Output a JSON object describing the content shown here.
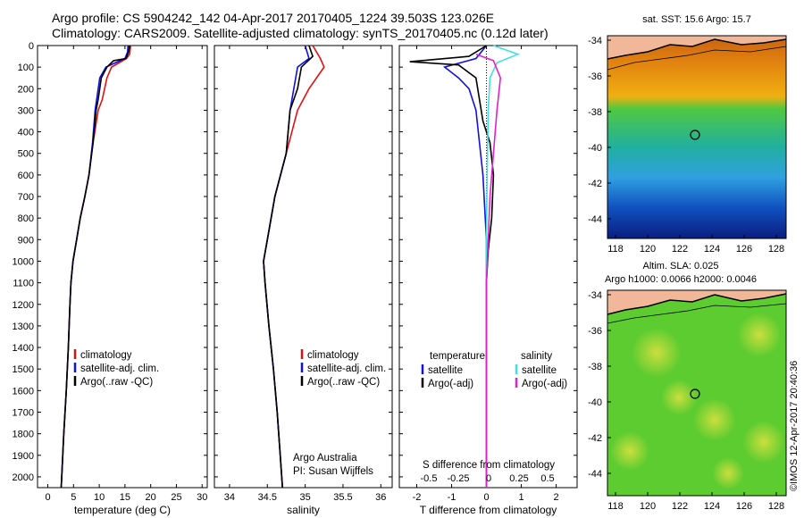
{
  "header": {
    "line1": "Argo profile: CS 5904242_142 04-Apr-2017 20170405_1224 39.503S 123.026E",
    "line2": "Climatology: CARS2009. Satellite-adjusted climatology: synTS_20170405.nc (0.12d later)"
  },
  "colors": {
    "climatology": "#e01010",
    "satellite": "#1010e0",
    "argo": "#000000",
    "sat_salinity": "#40e0e8",
    "argo_salinity": "#e020d0"
  },
  "chart_data": [
    {
      "type": "line",
      "id": "temperature",
      "xlabel": "temperature (deg C)",
      "ylabel": "",
      "xlim": [
        -2,
        31
      ],
      "ylim": [
        2050,
        0
      ],
      "x_ticks": [
        0,
        5,
        10,
        15,
        20,
        25,
        30
      ],
      "y_ticks": [
        0,
        100,
        200,
        300,
        400,
        500,
        600,
        700,
        800,
        900,
        1000,
        1100,
        1200,
        1300,
        1400,
        1500,
        1600,
        1700,
        1800,
        1900,
        2000
      ],
      "legend": [
        "climatology",
        "satellite-adj. clim.",
        "Argo(..raw -QC)"
      ],
      "legend_position": "lower-center",
      "series": [
        {
          "name": "climatology",
          "color": "#e01010",
          "points": [
            [
              16.1,
              0
            ],
            [
              15.9,
              40
            ],
            [
              15.3,
              60
            ],
            [
              12.4,
              100
            ],
            [
              11.5,
              150
            ],
            [
              10.6,
              250
            ],
            [
              9.8,
              300
            ],
            [
              8.8,
              450
            ],
            [
              8.0,
              600
            ],
            [
              7.2,
              700
            ],
            [
              6.3,
              800
            ],
            [
              5.6,
              900
            ],
            [
              4.9,
              1000
            ],
            [
              4.5,
              1100
            ],
            [
              4.3,
              1200
            ],
            [
              4.0,
              1400
            ],
            [
              3.6,
              1600
            ],
            [
              3.1,
              1800
            ],
            [
              2.7,
              2000
            ],
            [
              2.6,
              2050
            ]
          ]
        },
        {
          "name": "satellite-adj. clim.",
          "color": "#1010e0",
          "points": [
            [
              15.6,
              0
            ],
            [
              15.5,
              30
            ],
            [
              15.0,
              60
            ],
            [
              11.3,
              100
            ],
            [
              10.1,
              150
            ],
            [
              9.5,
              250
            ],
            [
              9.2,
              300
            ],
            [
              8.7,
              450
            ],
            [
              8.0,
              600
            ],
            [
              7.2,
              700
            ],
            [
              6.3,
              800
            ],
            [
              5.6,
              900
            ],
            [
              4.9,
              1000
            ],
            [
              4.5,
              1100
            ],
            [
              4.3,
              1200
            ],
            [
              4.0,
              1400
            ],
            [
              3.6,
              1600
            ],
            [
              3.1,
              1800
            ],
            [
              2.7,
              2000
            ],
            [
              2.6,
              2050
            ]
          ]
        },
        {
          "name": "Argo(..raw -QC)",
          "color": "#000000",
          "points": [
            [
              15.9,
              0
            ],
            [
              15.7,
              30
            ],
            [
              15.2,
              60
            ],
            [
              12.8,
              70
            ],
            [
              11.5,
              100
            ],
            [
              10.4,
              150
            ],
            [
              9.8,
              250
            ],
            [
              9.4,
              300
            ],
            [
              8.8,
              450
            ],
            [
              8.0,
              600
            ],
            [
              7.2,
              700
            ],
            [
              6.3,
              800
            ],
            [
              5.6,
              900
            ],
            [
              4.9,
              1000
            ],
            [
              4.5,
              1100
            ],
            [
              4.3,
              1200
            ],
            [
              4.0,
              1400
            ],
            [
              3.6,
              1600
            ],
            [
              3.1,
              1800
            ],
            [
              2.7,
              2000
            ],
            [
              2.6,
              2050
            ]
          ]
        }
      ]
    },
    {
      "type": "line",
      "id": "salinity",
      "xlabel": "salinity",
      "ylabel": "",
      "xlim": [
        33.8,
        36.15
      ],
      "ylim": [
        2050,
        0
      ],
      "x_ticks": [
        34,
        34.5,
        35,
        35.5,
        36
      ],
      "legend": [
        "climatology",
        "satellite-adj. clim.",
        "Argo(..raw -QC)"
      ],
      "legend_position": "lower-right",
      "annotation": [
        "Argo Australia",
        "PI: Susan Wijffels"
      ],
      "series": [
        {
          "name": "climatology",
          "color": "#e01010",
          "points": [
            [
              35.1,
              0
            ],
            [
              35.2,
              60
            ],
            [
              35.25,
              100
            ],
            [
              35.05,
              200
            ],
            [
              34.9,
              300
            ],
            [
              34.75,
              500
            ],
            [
              34.6,
              700
            ],
            [
              34.5,
              900
            ],
            [
              34.45,
              1000
            ],
            [
              34.47,
              1100
            ],
            [
              34.52,
              1300
            ],
            [
              34.58,
              1500
            ],
            [
              34.63,
              1700
            ],
            [
              34.67,
              1900
            ],
            [
              34.7,
              2050
            ]
          ]
        },
        {
          "name": "satellite-adj. clim.",
          "color": "#1010e0",
          "points": [
            [
              35.0,
              0
            ],
            [
              35.05,
              60
            ],
            [
              34.9,
              100
            ],
            [
              34.85,
              200
            ],
            [
              34.8,
              300
            ],
            [
              34.75,
              500
            ],
            [
              34.6,
              700
            ],
            [
              34.5,
              900
            ],
            [
              34.45,
              1000
            ],
            [
              34.47,
              1100
            ],
            [
              34.52,
              1300
            ],
            [
              34.58,
              1500
            ],
            [
              34.63,
              1700
            ],
            [
              34.67,
              1900
            ],
            [
              34.7,
              2050
            ]
          ]
        },
        {
          "name": "Argo(..raw -QC)",
          "color": "#000000",
          "points": [
            [
              35.05,
              0
            ],
            [
              35.1,
              50
            ],
            [
              34.95,
              100
            ],
            [
              34.9,
              200
            ],
            [
              34.8,
              300
            ],
            [
              34.75,
              500
            ],
            [
              34.6,
              700
            ],
            [
              34.5,
              900
            ],
            [
              34.45,
              1000
            ],
            [
              34.47,
              1100
            ],
            [
              34.52,
              1300
            ],
            [
              34.58,
              1500
            ],
            [
              34.63,
              1700
            ],
            [
              34.67,
              1900
            ],
            [
              34.7,
              2050
            ]
          ]
        }
      ]
    },
    {
      "type": "line",
      "id": "differences",
      "xlabel": "T difference from climatology",
      "xlabel_top": "S difference from climatology",
      "ylabel": "",
      "xlim": [
        -2.5,
        2.6
      ],
      "ylim": [
        2050,
        0
      ],
      "x_ticks": [
        -2,
        -1,
        0,
        1,
        2
      ],
      "s_ticks": [
        "-0.5",
        "-0.25",
        "0",
        "0.25",
        "0.5"
      ],
      "legend_headers": [
        "temperature",
        "salinity"
      ],
      "legend": [
        "satellite",
        "Argo(-adj)",
        "satellite",
        "Argo(-adj)"
      ],
      "legend_position": "lower-center",
      "series": [
        {
          "name": "temperature satellite",
          "color": "#1010e0",
          "points": [
            [
              0,
              0
            ],
            [
              -0.3,
              60
            ],
            [
              -1.2,
              100
            ],
            [
              -0.8,
              150
            ],
            [
              -0.5,
              200
            ],
            [
              -0.3,
              300
            ],
            [
              -0.2,
              450
            ],
            [
              -0.1,
              600
            ],
            [
              0,
              900
            ],
            [
              0,
              2050
            ]
          ]
        },
        {
          "name": "temperature Argo(-adj)",
          "color": "#000000",
          "points": [
            [
              0,
              0
            ],
            [
              -0.5,
              50
            ],
            [
              -2.2,
              75
            ],
            [
              -0.8,
              90
            ],
            [
              -0.3,
              150
            ],
            [
              -0.2,
              250
            ],
            [
              -0.1,
              350
            ],
            [
              0.1,
              450
            ],
            [
              0.2,
              600
            ],
            [
              0.15,
              800
            ],
            [
              0.05,
              950
            ],
            [
              0,
              1100
            ],
            [
              0,
              2050
            ]
          ]
        },
        {
          "name": "salinity satellite",
          "color": "#40e0e8",
          "points": [
            [
              0.2,
              0
            ],
            [
              0.9,
              40
            ],
            [
              0.3,
              80
            ],
            [
              0.1,
              150
            ],
            [
              0.05,
              300
            ],
            [
              0.02,
              600
            ],
            [
              0,
              900
            ],
            [
              0,
              2050
            ]
          ]
        },
        {
          "name": "salinity Argo(-adj)",
          "color": "#e020d0",
          "points": [
            [
              -0.3,
              40
            ],
            [
              0.2,
              70
            ],
            [
              0.4,
              150
            ],
            [
              0.3,
              300
            ],
            [
              0.2,
              500
            ],
            [
              0.1,
              700
            ],
            [
              0.05,
              900
            ],
            [
              0,
              1100
            ],
            [
              0,
              2050
            ]
          ]
        }
      ]
    }
  ],
  "maps": {
    "sst": {
      "title": "sat. SST: 15.6 Argo: 15.7",
      "x_ticks": [
        "118",
        "120",
        "122",
        "124",
        "126",
        "128"
      ],
      "y_ticks": [
        "-34",
        "-36",
        "-38",
        "-40",
        "-42",
        "-44"
      ]
    },
    "sla": {
      "title_line1": "Altim. SLA: 0.025",
      "title_line2": "Argo h1000: 0.0066 h2000: 0.0046",
      "x_ticks": [
        "118",
        "120",
        "122",
        "124",
        "126",
        "128"
      ],
      "y_ticks": [
        "-34",
        "-36",
        "-38",
        "-40",
        "-42",
        "-44"
      ]
    }
  },
  "footer_vertical": "©IMOS 12-Apr-2017 20:40:36"
}
